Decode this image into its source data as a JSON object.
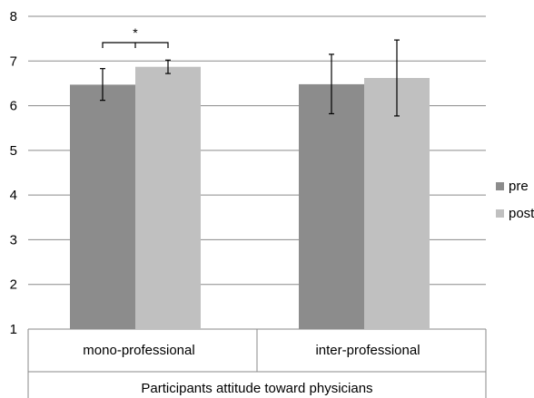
{
  "chart_data": {
    "type": "bar",
    "title": "",
    "xlabel": "Participants attitude toward physicians",
    "ylabel": "",
    "ylim": [
      1,
      8
    ],
    "yticks": [
      1,
      2,
      3,
      4,
      5,
      6,
      7,
      8
    ],
    "grid": true,
    "legend_position": "right",
    "categories": [
      "mono-professional",
      "inter-professional"
    ],
    "series": [
      {
        "name": "pre",
        "color": "#8c8c8c",
        "values": [
          6.47,
          6.48
        ],
        "error": [
          [
            6.12,
            6.83
          ],
          [
            5.82,
            7.15
          ]
        ]
      },
      {
        "name": "post",
        "color": "#c0c0c0",
        "values": [
          6.87,
          6.62
        ],
        "error": [
          [
            6.72,
            7.02
          ],
          [
            5.77,
            7.47
          ]
        ]
      }
    ],
    "annotations": [
      {
        "text": "*",
        "category": "mono-professional",
        "between": [
          "pre",
          "post"
        ]
      }
    ]
  }
}
